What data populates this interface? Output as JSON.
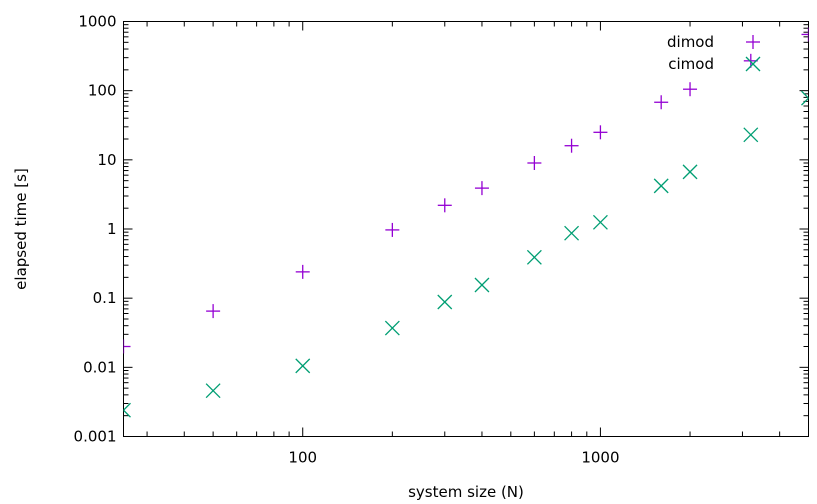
{
  "chart_data": {
    "type": "scatter",
    "title": "",
    "xlabel": "system size (N)",
    "ylabel": "elapsed time [s]",
    "xscale": "log",
    "yscale": "log",
    "xlim": [
      25,
      5000
    ],
    "ylim": [
      0.001,
      1000
    ],
    "xticks": [
      {
        "value": 100,
        "label": "100"
      },
      {
        "value": 1000,
        "label": "1000"
      }
    ],
    "yticks": [
      {
        "value": 0.001,
        "label": "0.001"
      },
      {
        "value": 0.01,
        "label": "0.01"
      },
      {
        "value": 0.1,
        "label": "0.1"
      },
      {
        "value": 1,
        "label": "1"
      },
      {
        "value": 10,
        "label": "10"
      },
      {
        "value": 100,
        "label": "100"
      },
      {
        "value": 1000,
        "label": "1000"
      }
    ],
    "grid": false,
    "legend_position": "top-right",
    "series": [
      {
        "name": "dimod",
        "marker": "plus",
        "color": "#9400d3",
        "x": [
          25,
          50,
          100,
          200,
          300,
          400,
          600,
          800,
          1000,
          1600,
          2000,
          3200,
          5000
        ],
        "y": [
          0.02,
          0.065,
          0.24,
          0.97,
          2.2,
          3.9,
          9.0,
          16.0,
          25.0,
          68.0,
          105.0,
          270.0,
          650.0
        ]
      },
      {
        "name": "cimod",
        "marker": "x",
        "color": "#009e73",
        "x": [
          25,
          50,
          100,
          200,
          300,
          400,
          600,
          800,
          1000,
          1600,
          2000,
          3200,
          5000
        ],
        "y": [
          0.0024,
          0.0046,
          0.0105,
          0.037,
          0.088,
          0.155,
          0.39,
          0.87,
          1.25,
          4.2,
          6.7,
          23.0,
          78.0
        ]
      }
    ]
  }
}
